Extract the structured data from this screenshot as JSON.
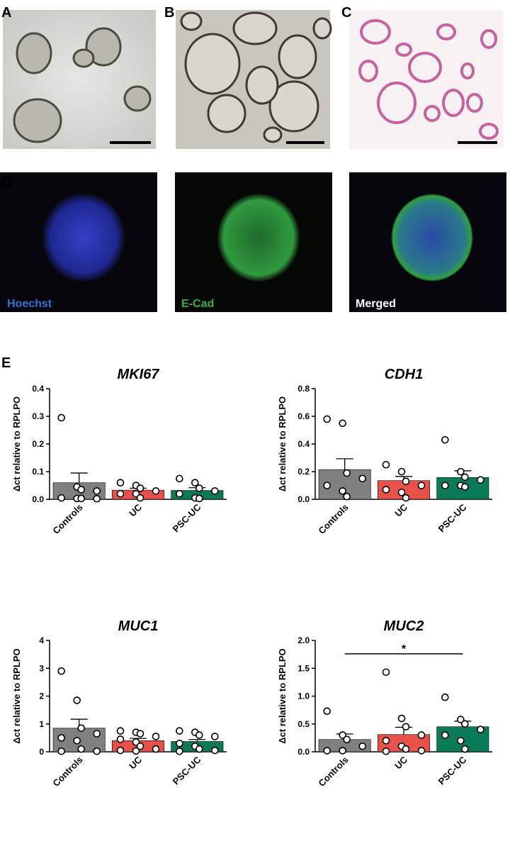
{
  "panels": {
    "a": "A",
    "b": "B",
    "c": "C",
    "d": "D",
    "e": "E"
  },
  "stains": {
    "hoechst": "Hoechst",
    "ecad": "E-Cad",
    "merged": "Merged"
  },
  "chart_data": [
    {
      "type": "bar",
      "title": "MKI67",
      "ylabel": "Δct relative to RPLPO",
      "categories": [
        "Controls",
        "UC",
        "PSC-UC"
      ],
      "colors": [
        "#808080",
        "#e8504a",
        "#0b7a57"
      ],
      "values": [
        0.06,
        0.033,
        0.032
      ],
      "errors": [
        0.035,
        0.007,
        0.01
      ],
      "points": [
        [
          0.295,
          0.045,
          0.035,
          0.03,
          0.005,
          0.003,
          0.003,
          0.002
        ],
        [
          0.06,
          0.05,
          0.04,
          0.03,
          0.02,
          0.02,
          0.005
        ],
        [
          0.075,
          0.06,
          0.04,
          0.03,
          0.02,
          0.005,
          0.003
        ]
      ],
      "ylim": [
        0,
        0.4
      ],
      "yticks": [
        {
          "value": 0,
          "label": "0.0"
        },
        0.1,
        0.2,
        0.3,
        0.4
      ]
    },
    {
      "type": "bar",
      "title": "CDH1",
      "ylabel": "Δct relative to RPLPO",
      "categories": [
        "Controls",
        "UC",
        "PSC-UC"
      ],
      "colors": [
        "#808080",
        "#e8504a",
        "#0b7a57"
      ],
      "values": [
        0.215,
        0.135,
        0.158
      ],
      "errors": [
        0.078,
        0.03,
        0.048
      ],
      "points": [
        [
          0.58,
          0.55,
          0.19,
          0.15,
          0.1,
          0.06,
          0.02
        ],
        [
          0.25,
          0.2,
          0.13,
          0.1,
          0.07,
          0.05,
          0.01
        ],
        [
          0.43,
          0.2,
          0.16,
          0.14,
          0.1,
          0.1,
          0.09
        ]
      ],
      "ylim": [
        0,
        0.8
      ],
      "yticks": [
        {
          "value": 0,
          "label": "0.0"
        },
        0.2,
        0.4,
        0.6,
        0.8
      ]
    },
    {
      "type": "bar",
      "title": "MUC1",
      "ylabel": "Δct relative to RPLPO",
      "categories": [
        "Controls",
        "UC",
        "PSC-UC"
      ],
      "colors": [
        "#808080",
        "#e8504a",
        "#0b7a57"
      ],
      "values": [
        0.85,
        0.4,
        0.37
      ],
      "errors": [
        0.32,
        0.08,
        0.07
      ],
      "points": [
        [
          2.9,
          1.85,
          0.85,
          0.65,
          0.5,
          0.4,
          0.1,
          0.02,
          0.02
        ],
        [
          0.75,
          0.7,
          0.65,
          0.55,
          0.45,
          0.35,
          0.2,
          0.1,
          0.05,
          0.03
        ],
        [
          0.75,
          0.7,
          0.6,
          0.55,
          0.3,
          0.2,
          0.1,
          0.05,
          0.02
        ]
      ],
      "ylim": [
        0,
        4
      ],
      "yticks": [
        0,
        1,
        2,
        3,
        4
      ]
    },
    {
      "type": "bar",
      "title": "MUC2",
      "ylabel": "Δct relative to RPLPO",
      "categories": [
        "Controls",
        "UC",
        "PSC-UC"
      ],
      "colors": [
        "#808080",
        "#e8504a",
        "#0b7a57"
      ],
      "values": [
        0.22,
        0.31,
        0.45
      ],
      "errors": [
        0.1,
        0.13,
        0.1
      ],
      "points": [
        [
          0.73,
          0.3,
          0.22,
          0.1,
          0.02,
          0.02
        ],
        [
          1.43,
          0.6,
          0.45,
          0.3,
          0.2,
          0.1,
          0.05,
          0.02,
          0.01
        ],
        [
          0.98,
          0.58,
          0.5,
          0.4,
          0.3,
          0.2,
          0.05
        ]
      ],
      "ylim": [
        0,
        2
      ],
      "yticks": [
        {
          "value": 0,
          "label": "0.0"
        },
        0.5,
        {
          "value": 1,
          "label": "1.0"
        },
        1.5,
        {
          "value": 2,
          "label": "2.0"
        }
      ],
      "significance": {
        "text": "*",
        "between": [
          "Controls",
          "PSC-UC"
        ]
      }
    }
  ]
}
